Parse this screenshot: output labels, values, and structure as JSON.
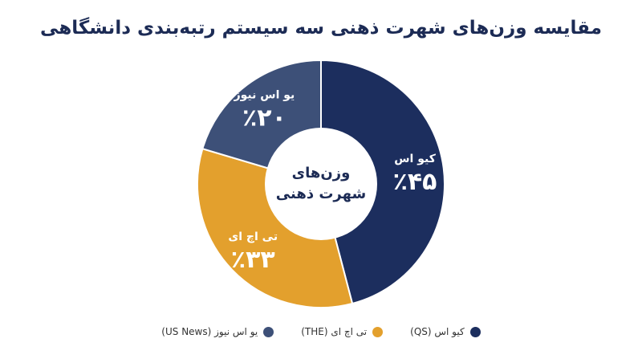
{
  "chart_data": {
    "type": "pie",
    "title": "مقایسه وزن‌های شهرت ذهنی سه سیستم رتبه‌بندی دانشگاهی",
    "center_label": [
      "وزن‌های",
      "شهرت ذهنی"
    ],
    "slices": [
      {
        "label": "کیو اس",
        "legend": "کیو اس (QS)",
        "value": 45,
        "value_label": "٪۴۵",
        "color": "#1c2e5e"
      },
      {
        "label": "تی اچ ای",
        "legend": "تی اچ ای (THE)",
        "value": 33,
        "value_label": "٪۳۳",
        "color": "#e3a02d"
      },
      {
        "label": "یو اس نیوز",
        "legend": "یو اس نیوز (US News)",
        "value": 20,
        "value_label": "٪۲۰",
        "color": "#3d5078"
      }
    ],
    "legend_position": "bottom"
  }
}
